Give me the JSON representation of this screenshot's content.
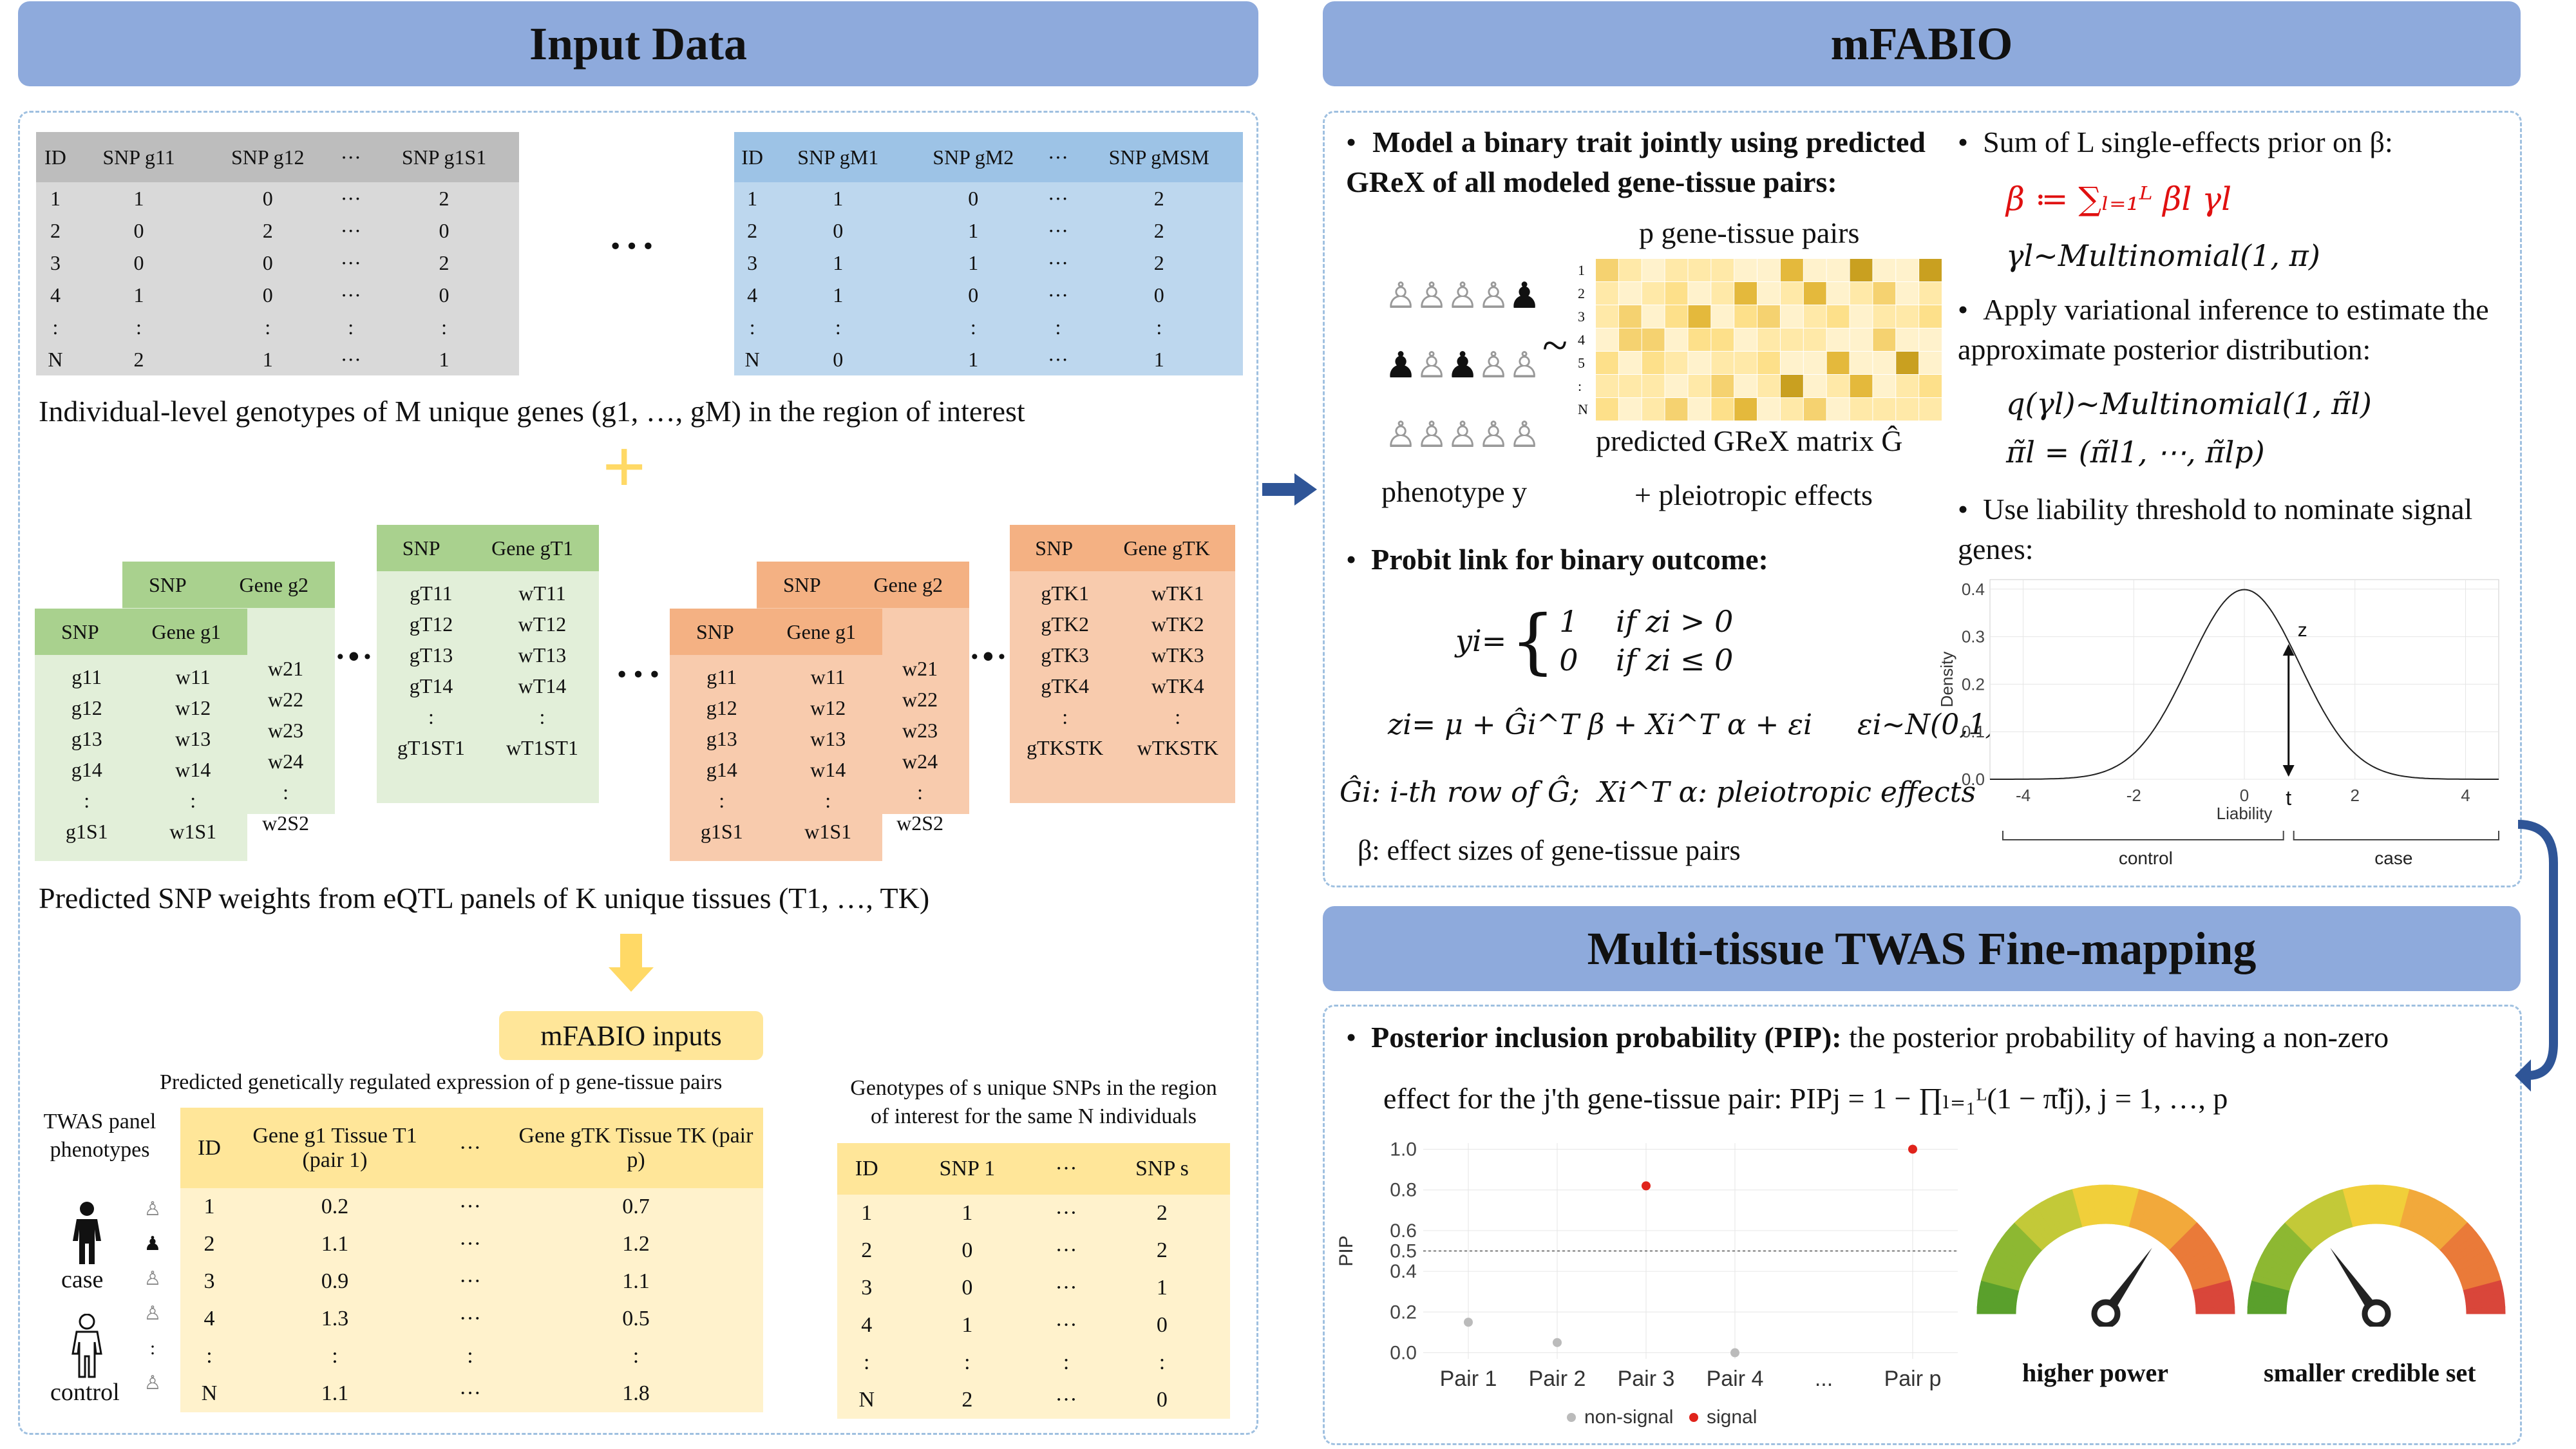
{
  "banners": {
    "input": "Input Data",
    "mfabio": "mFABIO",
    "finemap": "Multi-tissue TWAS Fine-mapping"
  },
  "genotype_tables": {
    "gray": {
      "headers": [
        "ID",
        "SNP g11",
        "SNP g12",
        "···",
        "SNP g1S1"
      ],
      "rows": [
        [
          "1",
          "1",
          "0",
          "···",
          "2"
        ],
        [
          "2",
          "0",
          "2",
          "···",
          "0"
        ],
        [
          "3",
          "0",
          "0",
          "···",
          "2"
        ],
        [
          "4",
          "1",
          "0",
          "···",
          "0"
        ],
        [
          ":",
          ":",
          ":",
          ":",
          ":"
        ],
        [
          "N",
          "2",
          "1",
          "···",
          "1"
        ]
      ]
    },
    "blue": {
      "headers": [
        "ID",
        "SNP gM1",
        "SNP gM2",
        "···",
        "SNP gMSM"
      ],
      "rows": [
        [
          "1",
          "1",
          "0",
          "···",
          "2"
        ],
        [
          "2",
          "0",
          "1",
          "···",
          "2"
        ],
        [
          "3",
          "1",
          "1",
          "···",
          "2"
        ],
        [
          "4",
          "1",
          "0",
          "···",
          "0"
        ],
        [
          ":",
          ":",
          ":",
          ":",
          ":"
        ],
        [
          "N",
          "0",
          "1",
          "···",
          "1"
        ]
      ]
    },
    "between_dots": "···",
    "caption": "Individual-level genotypes of M unique genes (g1, …, gM) in the region of interest"
  },
  "plus_sign": "+",
  "weights": {
    "caption": "Predicted SNP weights from eQTL panels of K unique tissues (T1, …, TK)",
    "snp_label": "SNP",
    "gene1": "Gene g1",
    "gene2": "Gene g2",
    "geneT1": "Gene gT1",
    "geneTK": "Gene gTK",
    "g1_snps": [
      "g11",
      "g12",
      "g13",
      "g14",
      ":",
      "g1S1"
    ],
    "g1_weights": [
      "w11",
      "w12",
      "w13",
      "w14",
      ":",
      "w1S1"
    ],
    "g2_weights": [
      "w21",
      "w22",
      "w23",
      "w24",
      ":",
      "w2S2"
    ],
    "t1_snps": [
      "gT11",
      "gT12",
      "gT13",
      "gT14",
      ":",
      "gT1ST1"
    ],
    "t1_weights": [
      "wT11",
      "wT12",
      "wT13",
      "wT14",
      ":",
      "wT1ST1"
    ],
    "tk_snps": [
      "gTK1",
      "gTK2",
      "gTK3",
      "gTK4",
      ":",
      "gTKSTK"
    ],
    "tk_weights": [
      "wTK1",
      "wTK2",
      "wTK3",
      "wTK4",
      ":",
      "wTKSTK"
    ]
  },
  "mfabio_inputs": {
    "label": "mFABIO inputs",
    "grex_caption": "Predicted genetically regulated expression of p gene-tissue pairs",
    "snp_caption_1": "Genotypes of s unique SNPs in the region",
    "snp_caption_2": "of interest for the same N individuals",
    "twas_label_1": "TWAS panel",
    "twas_label_2": "phenotypes",
    "case": "case",
    "control": "control",
    "grex_headers": [
      "ID",
      "Gene g1 Tissue T1 (pair 1)",
      "···",
      "Gene gTK Tissue TK (pair p)"
    ],
    "grex_rows": [
      [
        "1",
        "0.2",
        "···",
        "0.7"
      ],
      [
        "2",
        "1.1",
        "···",
        "1.2"
      ],
      [
        "3",
        "0.9",
        "···",
        "1.1"
      ],
      [
        "4",
        "1.3",
        "···",
        "0.5"
      ],
      [
        ":",
        ":",
        ":",
        ":"
      ],
      [
        "N",
        "1.1",
        "···",
        "1.8"
      ]
    ],
    "snp_headers": [
      "ID",
      "SNP 1",
      "···",
      "SNP s"
    ],
    "snp_rows": [
      [
        "1",
        "1",
        "···",
        "2"
      ],
      [
        "2",
        "0",
        "···",
        "2"
      ],
      [
        "3",
        "0",
        "···",
        "1"
      ],
      [
        "4",
        "1",
        "···",
        "0"
      ],
      [
        ":",
        ":",
        ":",
        ":"
      ],
      [
        "N",
        "2",
        "···",
        "0"
      ]
    ]
  },
  "mfabio": {
    "bullet1": "Model a binary trait jointly using predicted GReX of all modeled gene-tissue pairs:",
    "p_pairs": "p gene-tissue pairs",
    "tilde": "~",
    "heatmap_rows": [
      "1",
      "2",
      "3",
      "4",
      "5",
      ":",
      "N"
    ],
    "grex_matrix_label": "predicted GReX matrix Ĝ",
    "pleio_label": "+ pleiotropic effects",
    "phenotype_label": "phenotype y",
    "bullet2": "Probit link for binary outcome:",
    "eq_y_lhs": "yi=",
    "eq_y_case1": "1    if zi > 0",
    "eq_y_case0": "0    if zi ≤ 0",
    "eq_z": "zi= μ + Ĝi^T β + Xi^T α + εi     εi~N(0,1)",
    "def_line": "Ĝi: i-th row of Ĝ;  Xi^T α: pleiotropic effects",
    "beta_line": "β: effect sizes of gene-tissue pairs",
    "bullet3": "Sum of L single-effects prior on β:",
    "prior1": "β ≔ ∑ₗ₌₁ᴸ βl γl",
    "prior2": "γl~Multinomial(1, π)",
    "bullet4": "Apply variational inference to estimate the approximate posterior distribution:",
    "post1": "q(γl)~Multinomial(1, π̃l)",
    "post2": "π̃l = (π̃l1, ⋯, π̃lp)",
    "bullet5": "Use liability threshold to nominate signal genes:"
  },
  "density_chart": {
    "type": "line",
    "xlabel": "Liability",
    "ylabel": "Density",
    "xlim": [
      -4.6,
      4.6
    ],
    "ylim": [
      0,
      0.42
    ],
    "x_ticks": [
      "-4",
      "-2",
      "0",
      "2",
      "4"
    ],
    "y_ticks": [
      "0.0",
      "0.1",
      "0.2",
      "0.3",
      "0.4"
    ],
    "threshold_label": "t",
    "z_label": "z",
    "threshold": 0.8,
    "control": "control",
    "case": "case"
  },
  "finemap": {
    "bullet_bold": "Posterior inclusion probability (PIP):",
    "bullet_rest": " the posterior probability of having a non-zero",
    "line2": "effect for the j'th gene-tissue pair: PIPj = 1 − ∏ₗ₌₁ᴸ(1 − π̃lj),  j = 1, …, p",
    "higher_power": "higher power",
    "smaller_set": "smaller credible set"
  },
  "chart_data": {
    "type": "scatter",
    "categories": [
      "Pair 1",
      "Pair 2",
      "Pair 3",
      "Pair 4",
      "...",
      "Pair p"
    ],
    "series": [
      {
        "name": "non-signal",
        "color": "#bbbbbb",
        "points": [
          [
            "Pair 1",
            0.15
          ],
          [
            "Pair 2",
            0.05
          ],
          [
            "Pair 4",
            0.0
          ]
        ]
      },
      {
        "name": "signal",
        "color": "#e0231b",
        "points": [
          [
            "Pair 3",
            0.82
          ],
          [
            "Pair p",
            1.0
          ]
        ]
      }
    ],
    "ylabel": "PIP",
    "ylim": [
      -0.03,
      1.03
    ],
    "y_ticks": [
      "0.0",
      "0.2",
      "0.4",
      "0.5",
      "0.6",
      "0.8",
      "1.0"
    ],
    "reference_line": 0.5
  }
}
